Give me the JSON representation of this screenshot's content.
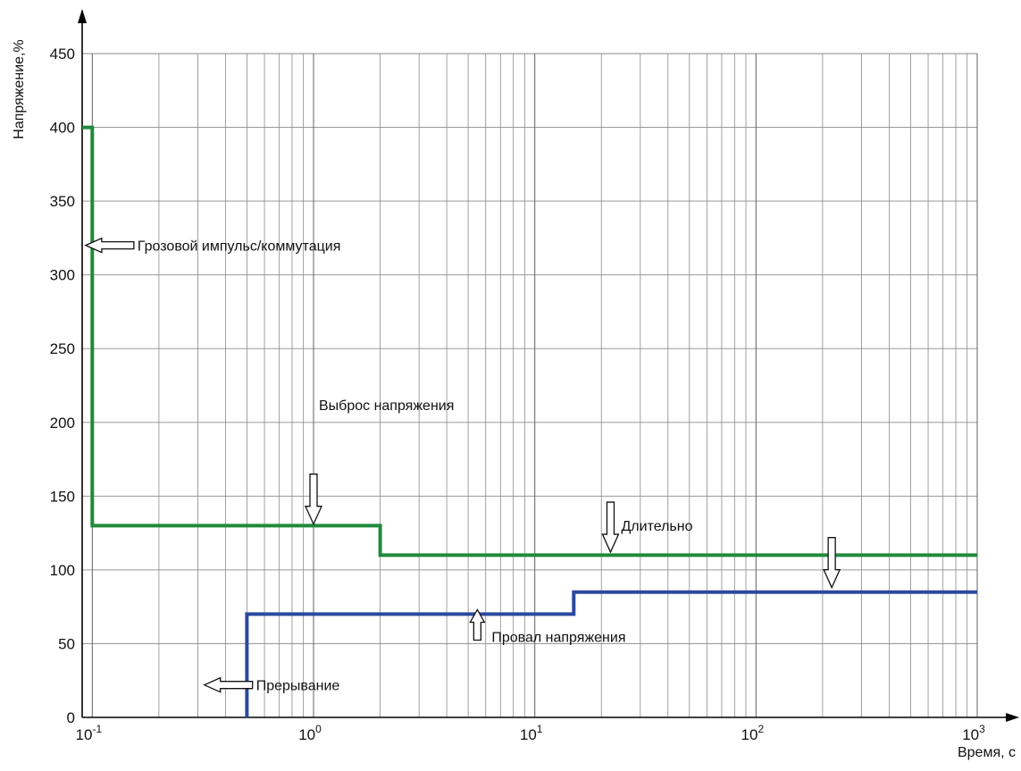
{
  "chart_data": {
    "type": "line",
    "title": "",
    "xlabel": "Время, с",
    "ylabel": "Напряжение,%",
    "x_scale": "log",
    "xlim": [
      0.09,
      1000
    ],
    "ylim": [
      0,
      450
    ],
    "x_ticks": [
      {
        "value": 0.1,
        "base": "10",
        "exp": "-1"
      },
      {
        "value": 1,
        "base": "10",
        "exp": "0"
      },
      {
        "value": 10,
        "base": "10",
        "exp": "1"
      },
      {
        "value": 100,
        "base": "10",
        "exp": "2"
      },
      {
        "value": 1000,
        "base": "10",
        "exp": "3"
      }
    ],
    "y_ticks": [
      "0",
      "50",
      "100",
      "150",
      "200",
      "250",
      "300",
      "350",
      "400",
      "450"
    ],
    "grid": true,
    "series": [
      {
        "color": "#1f8a3b",
        "points": [
          [
            0.09,
            400
          ],
          [
            0.1,
            400
          ],
          [
            0.1,
            130
          ],
          [
            2,
            130
          ],
          [
            2,
            110
          ],
          [
            1000,
            110
          ]
        ]
      },
      {
        "color": "#2b4a9e",
        "points": [
          [
            0.5,
            0
          ],
          [
            0.5,
            70
          ],
          [
            15,
            70
          ],
          [
            15,
            85
          ],
          [
            1000,
            85
          ]
        ]
      }
    ],
    "annotations": [
      {
        "text": "Грозовой импульс/коммутация",
        "x": 0.16,
        "y": 320,
        "arrow": "left"
      },
      {
        "text": "Выброс напряжения",
        "x": 1.0,
        "y": 160,
        "arrow": "down"
      },
      {
        "text": "Длительно",
        "x": 22,
        "y": 114,
        "arrow": "down"
      },
      {
        "text": "",
        "x": 220,
        "y": 90,
        "arrow": "down"
      },
      {
        "text": "Провал напряжения",
        "x": 5.5,
        "y": 73,
        "arrow": "up"
      },
      {
        "text": "Прерывание",
        "x": 0.55,
        "y": 22,
        "arrow": "left"
      }
    ]
  }
}
